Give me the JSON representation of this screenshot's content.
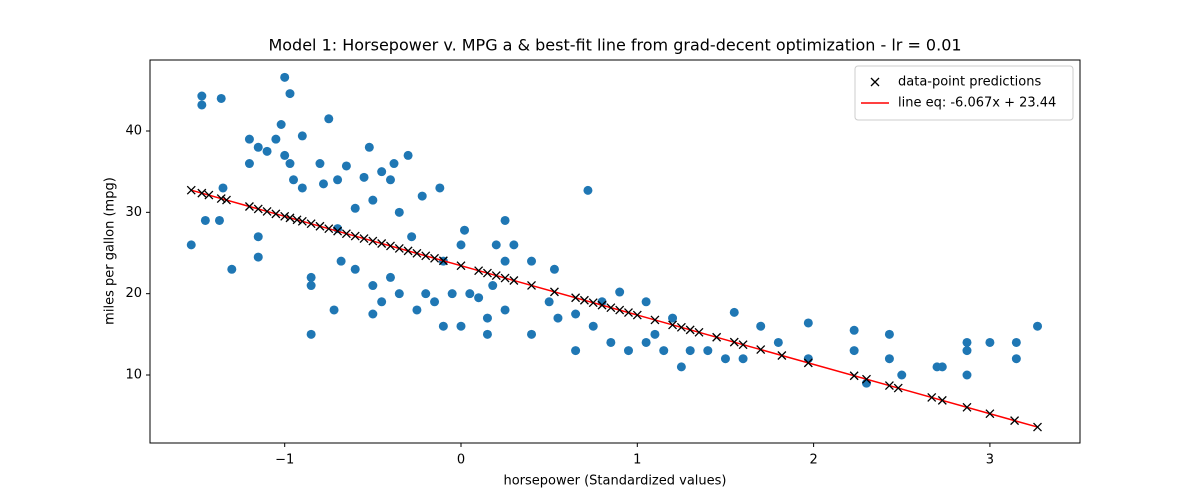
{
  "chart_data": {
    "type": "scatter",
    "title": "Model 1: Horsepower v. MPG a & best-fit line from grad-decent optimization - lr = 0.01",
    "xlabel": "horsepower (Standardized values)",
    "ylabel": "miles per gallon (mpg)",
    "xlim": [
      -1.764,
      3.511
    ],
    "ylim": [
      1.64,
      48.73
    ],
    "xticks": [
      {
        "value": -1,
        "label": "−1"
      },
      0,
      1,
      2,
      3
    ],
    "yticks": [
      10,
      20,
      30,
      40
    ],
    "legend": "upper right",
    "series": [
      {
        "color": "#1f77b4",
        "marker": "o",
        "x": [
          -1.53,
          -1.47,
          -1.47,
          -1.36,
          -1.45,
          -1.37,
          -1.3,
          -1.35,
          -1.2,
          -1.2,
          -1.15,
          -1.15,
          -1.15,
          -1.1,
          -1.05,
          -1.02,
          -1.0,
          -0.97,
          -1.0,
          -0.97,
          -0.95,
          -0.9,
          -0.9,
          -0.85,
          -0.85,
          -0.85,
          -0.8,
          -0.78,
          -0.75,
          -0.7,
          -0.7,
          -0.68,
          -0.72,
          -0.65,
          -0.6,
          -0.6,
          -0.55,
          -0.52,
          -0.5,
          -0.5,
          -0.5,
          -0.45,
          -0.45,
          -0.4,
          -0.4,
          -0.38,
          -0.35,
          -0.35,
          -0.3,
          -0.28,
          -0.25,
          -0.22,
          -0.2,
          -0.15,
          -0.12,
          -0.1,
          -0.1,
          -0.05,
          0,
          0,
          0.02,
          0.05,
          0.1,
          0.15,
          0.15,
          0.18,
          0.2,
          0.25,
          0.25,
          0.25,
          0.3,
          0.4,
          0.4,
          0.5,
          0.53,
          0.55,
          0.65,
          0.65,
          0.72,
          0.75,
          0.8,
          0.85,
          0.9,
          0.95,
          1.05,
          1.05,
          1.1,
          1.15,
          1.2,
          1.25,
          1.3,
          1.4,
          1.5,
          1.55,
          1.6,
          1.7,
          1.8,
          1.97,
          1.97,
          2.23,
          2.23,
          2.3,
          2.43,
          2.43,
          2.5,
          2.7,
          2.73,
          2.87,
          2.87,
          2.87,
          3.0,
          3.15,
          3.15,
          3.27
        ],
        "values": [
          26,
          44.3,
          43.2,
          44,
          29,
          29,
          23,
          33,
          39,
          36,
          38,
          27,
          24.5,
          37.5,
          39,
          40.8,
          46.6,
          44.6,
          37,
          36,
          34,
          39.4,
          33,
          15,
          21,
          22,
          36,
          33.5,
          41.5,
          34,
          28,
          24,
          18,
          35.7,
          23,
          30.5,
          34.3,
          38,
          31.5,
          21,
          17.5,
          19,
          35,
          34,
          22,
          36,
          30,
          20,
          37,
          27,
          18,
          32,
          20,
          19,
          33,
          16,
          24,
          20,
          26,
          16,
          27.8,
          20,
          19.5,
          17,
          15,
          21,
          26,
          29,
          24,
          18,
          26,
          24,
          15,
          19,
          23,
          17,
          13,
          17.5,
          32.7,
          16,
          19,
          14,
          20.2,
          13,
          19,
          14,
          15,
          13,
          17,
          11,
          13,
          13,
          12,
          17.7,
          12,
          16,
          14,
          16.4,
          12,
          15.5,
          13,
          9,
          15,
          12,
          10,
          11,
          11,
          14,
          13,
          10,
          14,
          14,
          12,
          16
        ]
      },
      {
        "name": "data-point predictions",
        "color": "#000000",
        "marker": "x",
        "x": [
          -1.53,
          -1.47,
          -1.43,
          -1.36,
          -1.33,
          -1.2,
          -1.15,
          -1.1,
          -1.05,
          -1.0,
          -0.97,
          -0.93,
          -0.9,
          -0.85,
          -0.8,
          -0.75,
          -0.7,
          -0.65,
          -0.6,
          -0.55,
          -0.5,
          -0.45,
          -0.4,
          -0.35,
          -0.3,
          -0.25,
          -0.2,
          -0.15,
          -0.1,
          0,
          0.1,
          0.15,
          0.2,
          0.25,
          0.3,
          0.4,
          0.53,
          0.65,
          0.7,
          0.75,
          0.8,
          0.85,
          0.9,
          0.95,
          1.0,
          1.1,
          1.2,
          1.25,
          1.3,
          1.35,
          1.45,
          1.55,
          1.6,
          1.7,
          1.82,
          1.97,
          2.23,
          2.3,
          2.43,
          2.48,
          2.67,
          2.73,
          2.87,
          3.0,
          3.14,
          3.27
        ],
        "values": [
          32.72,
          32.36,
          32.12,
          31.69,
          31.51,
          30.72,
          30.42,
          30.11,
          29.81,
          29.51,
          29.32,
          29.08,
          28.9,
          28.6,
          28.29,
          27.99,
          27.69,
          27.38,
          27.08,
          26.78,
          26.47,
          26.17,
          25.87,
          25.56,
          25.26,
          24.96,
          24.65,
          24.35,
          24.05,
          23.44,
          22.83,
          22.53,
          22.23,
          21.92,
          21.62,
          21.01,
          20.22,
          19.5,
          19.19,
          18.89,
          18.59,
          18.28,
          17.98,
          17.68,
          17.37,
          16.77,
          16.16,
          15.86,
          15.55,
          15.25,
          14.64,
          14.04,
          13.73,
          13.13,
          12.4,
          11.49,
          9.91,
          9.49,
          8.7,
          8.39,
          7.24,
          6.88,
          6.03,
          5.24,
          4.39,
          3.6
        ]
      },
      {
        "name": "line eq: -6.067x + 23.44",
        "color": "#ff0000",
        "marker": "line",
        "x": [
          -1.53,
          3.27
        ],
        "values": [
          32.72,
          3.6
        ]
      }
    ]
  }
}
